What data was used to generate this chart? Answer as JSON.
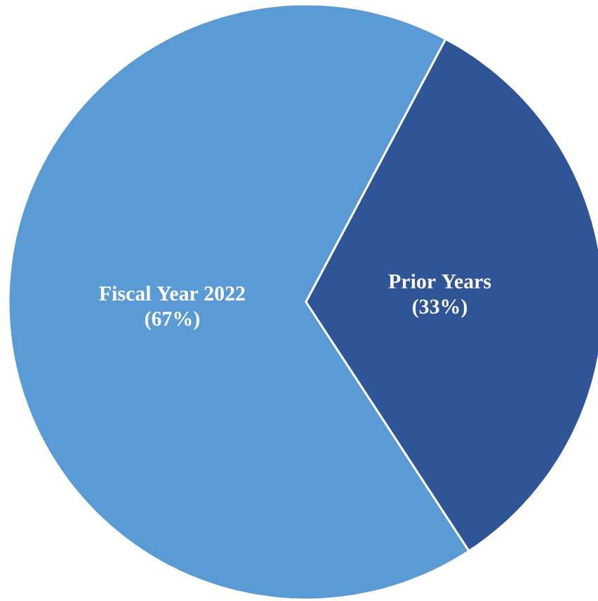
{
  "chart_data": {
    "type": "pie",
    "categories": [
      "Fiscal Year 2022",
      "Prior Years"
    ],
    "values": [
      67,
      33
    ],
    "colors": [
      "#5b9bd5",
      "#2f5597"
    ],
    "value_labels": [
      "(67%)",
      "(33%)"
    ]
  }
}
